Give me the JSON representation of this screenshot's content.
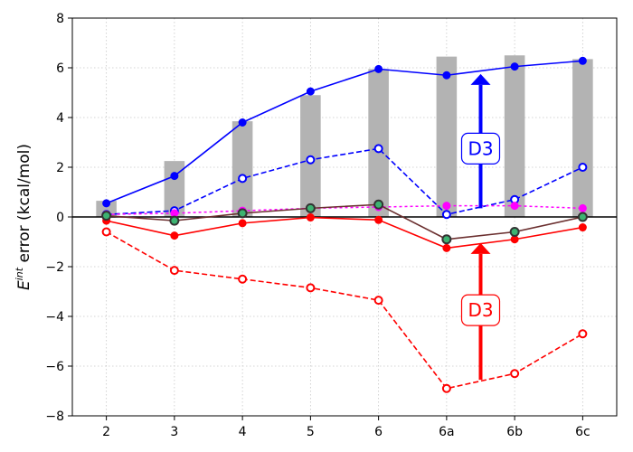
{
  "chart_data": {
    "type": "line",
    "categories": [
      "2",
      "3",
      "4",
      "5",
      "6",
      "6a",
      "6b",
      "6c"
    ],
    "ylabel_main": "E",
    "ylabel_sup": "int",
    "ylabel_rest": " error (kcal/mol)",
    "ylim": [
      -8,
      8
    ],
    "yticks": [
      -8,
      -6,
      -4,
      -2,
      0,
      2,
      4,
      6,
      8
    ],
    "grid": true,
    "bars": {
      "color": "#b3b3b3",
      "values": [
        0.65,
        2.25,
        3.85,
        4.9,
        5.95,
        6.45,
        6.5,
        6.35
      ]
    },
    "series": [
      {
        "color": "#0000ff",
        "dash": "solid",
        "marker": "filled",
        "values": [
          0.55,
          1.65,
          3.8,
          5.05,
          5.95,
          5.7,
          6.05,
          6.28
        ]
      },
      {
        "color": "#0000ff",
        "dash": "dashed",
        "marker": "open",
        "values": [
          0.1,
          0.25,
          1.55,
          2.3,
          2.75,
          0.1,
          0.7,
          2.0
        ]
      },
      {
        "color": "#ff00ff",
        "dash": "dotted",
        "marker": "filled",
        "values": [
          0.1,
          0.15,
          0.25,
          0.35,
          0.4,
          0.45,
          0.45,
          0.35
        ]
      },
      {
        "color": "#ff0000",
        "dash": "solid",
        "marker": "filled",
        "values": [
          -0.15,
          -0.75,
          -0.25,
          -0.02,
          -0.12,
          -1.25,
          -0.9,
          -0.42
        ]
      },
      {
        "color": "#ff0000",
        "dash": "dashed",
        "marker": "open",
        "values": [
          -0.6,
          -2.15,
          -2.5,
          -2.85,
          -3.35,
          -6.9,
          -6.3,
          -4.7
        ]
      },
      {
        "color": "#6b2f2f",
        "dash": "solid",
        "marker": "green",
        "values": [
          0.05,
          -0.15,
          0.15,
          0.35,
          0.5,
          -0.9,
          -0.6,
          0.0
        ]
      }
    ],
    "annotations": [
      {
        "text": "D3",
        "color": "#0000ff",
        "x": 5.5,
        "y": 2.75,
        "arrow_from": 0.35,
        "arrow_to": 5.75
      },
      {
        "text": "D3",
        "color": "#ff0000",
        "x": 5.5,
        "y": -3.75,
        "arrow_from": -6.55,
        "arrow_to": -1.05
      }
    ]
  }
}
